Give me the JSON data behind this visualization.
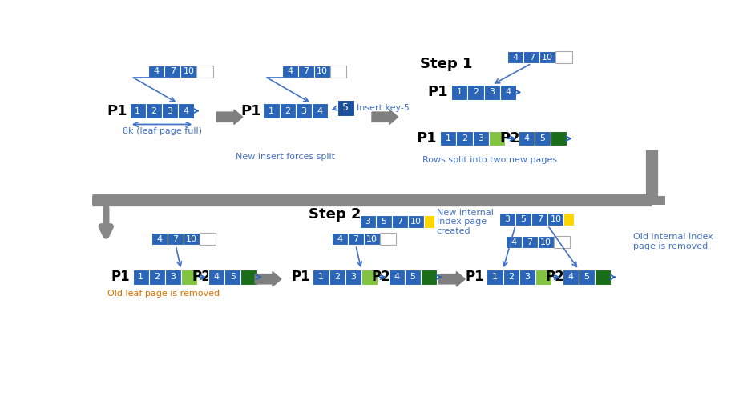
{
  "blue": "#2B65B8",
  "blue_dark": "#1A4F9A",
  "green_dark": "#1A6E1A",
  "green_light": "#82C341",
  "yellow": "#FFD700",
  "white": "#FFFFFF",
  "gray": "#7F7F7F",
  "blue_text": "#4472C4",
  "orange_text": "#E07000",
  "step1_title": "Step 1",
  "step2_title": "Step 2",
  "label1": "8k (leaf page full)",
  "label2": "New insert forces split",
  "label3": "Rows split into two new pages",
  "label4": "Old leaf page is removed",
  "label5": "New internal\nIndex page\ncreated",
  "label6": "Old internal Index\npage is removed"
}
